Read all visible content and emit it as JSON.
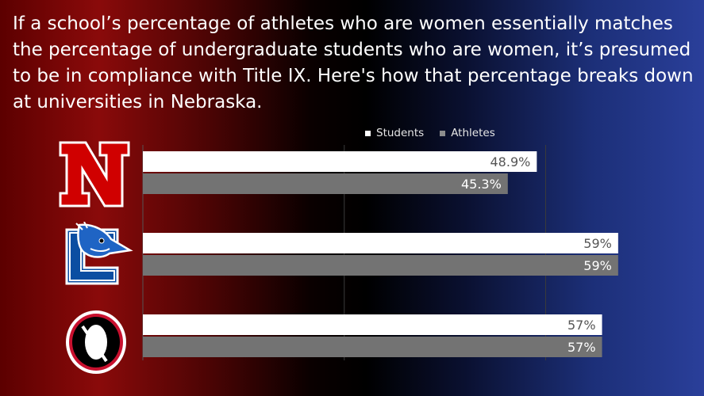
{
  "headline": "If a school’s percentage of athletes who are women essentially matches the percentage of undergraduate students who are women, it’s presumed to be in compliance with Title IX. Here's how that percentage breaks down at universities in Nebraska.",
  "colors": {
    "students": "#ffffff",
    "athletes": "#737373",
    "nebraska_red": "#d00000",
    "creighton_blue": "#0b4ea2",
    "omaha_black": "#000000"
  },
  "icons": [
    "nebraska-n-logo-icon",
    "creighton-bluejay-logo-icon",
    "omaha-o-logo-icon"
  ],
  "chart_data": {
    "type": "bar",
    "orientation": "horizontal",
    "categories": [
      "Nebraska",
      "Creighton",
      "Omaha"
    ],
    "series": [
      {
        "name": "Students",
        "values": [
          48.9,
          59,
          57
        ],
        "labels": [
          "48.9%",
          "59%",
          "57%"
        ],
        "color": "#ffffff"
      },
      {
        "name": "Athletes",
        "values": [
          45.3,
          59,
          57
        ],
        "labels": [
          "45.3%",
          "59%",
          "57%"
        ],
        "color": "#737373"
      }
    ],
    "xlim": [
      0,
      60
    ],
    "grid": true,
    "legend": "top",
    "title": "",
    "xlabel": "",
    "ylabel": ""
  }
}
